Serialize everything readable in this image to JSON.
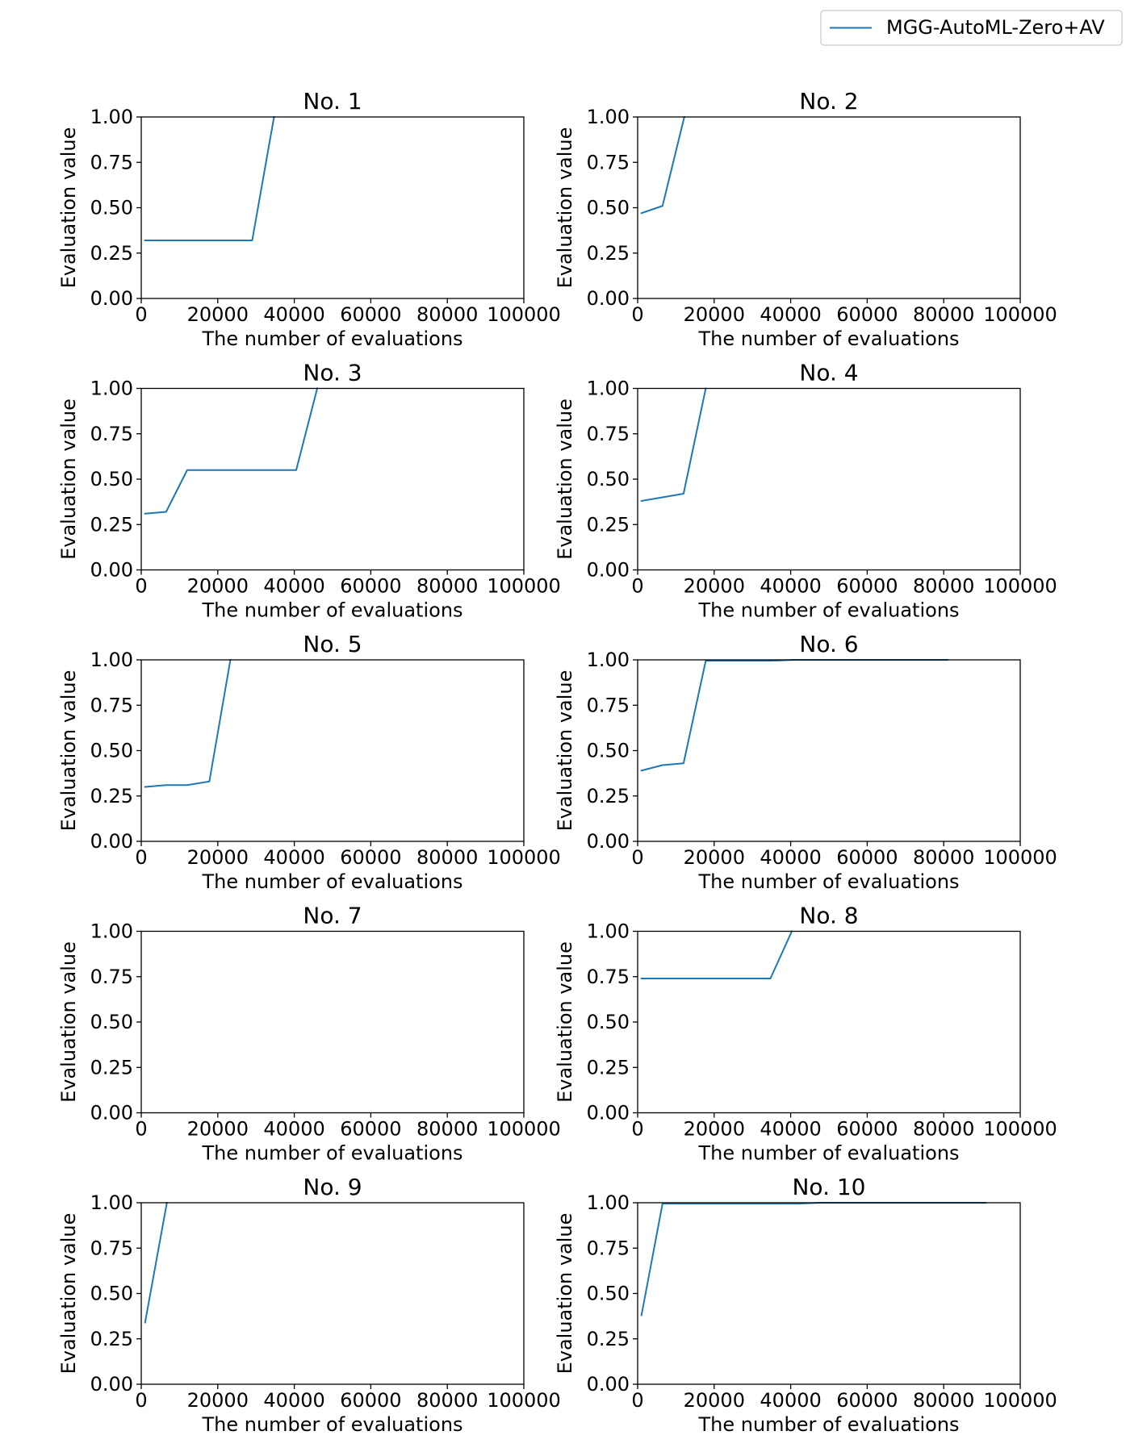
{
  "legend": {
    "label": "MGG-AutoML-Zero+AV",
    "color": "#1f77b4",
    "placement": "upper right"
  },
  "chart_data": [
    {
      "type": "line",
      "title": "No. 1",
      "xlabel": "The number of evaluations",
      "ylabel": "Evaluation value",
      "xlim": [
        0,
        100000
      ],
      "ylim": [
        0,
        1
      ],
      "xticks": [
        "0",
        "20000",
        "40000",
        "60000",
        "80000",
        "100000"
      ],
      "yticks": [
        "0.00",
        "0.25",
        "0.50",
        "0.75",
        "1.00"
      ],
      "series": [
        {
          "name": "MGG-AutoML-Zero+AV",
          "x": [
            1000,
            6000,
            12000,
            18000,
            24000,
            29000,
            34700
          ],
          "y": [
            0.32,
            0.32,
            0.32,
            0.32,
            0.32,
            0.32,
            1.0
          ]
        }
      ]
    },
    {
      "type": "line",
      "title": "No. 2",
      "xlabel": "The number of evaluations",
      "ylabel": "Evaluation value",
      "xlim": [
        0,
        100000
      ],
      "ylim": [
        0,
        1
      ],
      "xticks": [
        "0",
        "20000",
        "40000",
        "60000",
        "80000",
        "100000"
      ],
      "yticks": [
        "0.00",
        "0.25",
        "0.50",
        "0.75",
        "1.00"
      ],
      "series": [
        {
          "name": "MGG-AutoML-Zero+AV",
          "x": [
            1000,
            6500,
            12200
          ],
          "y": [
            0.47,
            0.51,
            1.0
          ]
        }
      ]
    },
    {
      "type": "line",
      "title": "No. 3",
      "xlabel": "The number of evaluations",
      "ylabel": "Evaluation value",
      "xlim": [
        0,
        100000
      ],
      "ylim": [
        0,
        1
      ],
      "xticks": [
        "0",
        "20000",
        "40000",
        "60000",
        "80000",
        "100000"
      ],
      "yticks": [
        "0.00",
        "0.25",
        "0.50",
        "0.75",
        "1.00"
      ],
      "series": [
        {
          "name": "MGG-AutoML-Zero+AV",
          "x": [
            1000,
            6500,
            12000,
            18000,
            24000,
            30000,
            35000,
            40500,
            46000
          ],
          "y": [
            0.31,
            0.32,
            0.55,
            0.55,
            0.55,
            0.55,
            0.55,
            0.55,
            1.0
          ]
        }
      ]
    },
    {
      "type": "line",
      "title": "No. 4",
      "xlabel": "The number of evaluations",
      "ylabel": "Evaluation value",
      "xlim": [
        0,
        100000
      ],
      "ylim": [
        0,
        1
      ],
      "xticks": [
        "0",
        "20000",
        "40000",
        "60000",
        "80000",
        "100000"
      ],
      "yticks": [
        "0.00",
        "0.25",
        "0.50",
        "0.75",
        "1.00"
      ],
      "series": [
        {
          "name": "MGG-AutoML-Zero+AV",
          "x": [
            1000,
            6500,
            12000,
            17800
          ],
          "y": [
            0.38,
            0.4,
            0.42,
            1.0
          ]
        }
      ]
    },
    {
      "type": "line",
      "title": "No. 5",
      "xlabel": "The number of evaluations",
      "ylabel": "Evaluation value",
      "xlim": [
        0,
        100000
      ],
      "ylim": [
        0,
        1
      ],
      "xticks": [
        "0",
        "20000",
        "40000",
        "60000",
        "80000",
        "100000"
      ],
      "yticks": [
        "0.00",
        "0.25",
        "0.50",
        "0.75",
        "1.00"
      ],
      "series": [
        {
          "name": "MGG-AutoML-Zero+AV",
          "x": [
            1000,
            6500,
            12000,
            17800,
            23300
          ],
          "y": [
            0.3,
            0.31,
            0.31,
            0.33,
            1.0
          ]
        }
      ]
    },
    {
      "type": "line",
      "title": "No. 6",
      "xlabel": "The number of evaluations",
      "ylabel": "Evaluation value",
      "xlim": [
        0,
        100000
      ],
      "ylim": [
        0,
        1
      ],
      "xticks": [
        "0",
        "20000",
        "40000",
        "60000",
        "80000",
        "100000"
      ],
      "yticks": [
        "0.00",
        "0.25",
        "0.50",
        "0.75",
        "1.00"
      ],
      "series": [
        {
          "name": "MGG-AutoML-Zero+AV",
          "x": [
            1000,
            6500,
            12000,
            17800,
            23300,
            29000,
            35000,
            41000,
            47000,
            53000,
            59000,
            65000,
            71000,
            77000,
            81000
          ],
          "y": [
            0.39,
            0.42,
            0.43,
            0.995,
            0.995,
            0.995,
            0.995,
            1.0,
            1.0,
            1.0,
            1.0,
            1.0,
            1.0,
            1.0,
            1.0
          ]
        }
      ]
    },
    {
      "type": "line",
      "title": "No. 7",
      "xlabel": "The number of evaluations",
      "ylabel": "Evaluation value",
      "xlim": [
        0,
        100000
      ],
      "ylim": [
        0,
        1
      ],
      "xticks": [
        "0",
        "20000",
        "40000",
        "60000",
        "80000",
        "100000"
      ],
      "yticks": [
        "0.00",
        "0.25",
        "0.50",
        "0.75",
        "1.00"
      ],
      "series": [
        {
          "name": "MGG-AutoML-Zero+AV",
          "x": [],
          "y": []
        }
      ]
    },
    {
      "type": "line",
      "title": "No. 8",
      "xlabel": "The number of evaluations",
      "ylabel": "Evaluation value",
      "xlim": [
        0,
        100000
      ],
      "ylim": [
        0,
        1
      ],
      "xticks": [
        "0",
        "20000",
        "40000",
        "60000",
        "80000",
        "100000"
      ],
      "yticks": [
        "0.00",
        "0.25",
        "0.50",
        "0.75",
        "1.00"
      ],
      "series": [
        {
          "name": "MGG-AutoML-Zero+AV",
          "x": [
            1000,
            6500,
            12000,
            18000,
            24000,
            29000,
            34700,
            40300
          ],
          "y": [
            0.74,
            0.74,
            0.74,
            0.74,
            0.74,
            0.74,
            0.74,
            1.0
          ]
        }
      ]
    },
    {
      "type": "line",
      "title": "No. 9",
      "xlabel": "The number of evaluations",
      "ylabel": "Evaluation value",
      "xlim": [
        0,
        100000
      ],
      "ylim": [
        0,
        1
      ],
      "xticks": [
        "0",
        "20000",
        "40000",
        "60000",
        "80000",
        "100000"
      ],
      "yticks": [
        "0.00",
        "0.25",
        "0.50",
        "0.75",
        "1.00"
      ],
      "series": [
        {
          "name": "MGG-AutoML-Zero+AV",
          "x": [
            1000,
            6700
          ],
          "y": [
            0.34,
            1.0
          ]
        }
      ]
    },
    {
      "type": "line",
      "title": "No. 10",
      "xlabel": "The number of evaluations",
      "ylabel": "Evaluation value",
      "xlim": [
        0,
        100000
      ],
      "ylim": [
        0,
        1
      ],
      "xticks": [
        "0",
        "20000",
        "40000",
        "60000",
        "80000",
        "100000"
      ],
      "yticks": [
        "0.00",
        "0.25",
        "0.50",
        "0.75",
        "1.00"
      ],
      "series": [
        {
          "name": "MGG-AutoML-Zero+AV",
          "x": [
            1000,
            6500,
            12000,
            18000,
            24000,
            30000,
            36000,
            42000,
            48000,
            54000,
            60000,
            66000,
            72000,
            78000,
            84000,
            91000
          ],
          "y": [
            0.38,
            0.995,
            0.995,
            0.995,
            0.995,
            0.995,
            0.995,
            0.995,
            1.0,
            1.0,
            1.0,
            1.0,
            1.0,
            1.0,
            1.0,
            1.0
          ]
        }
      ]
    }
  ]
}
